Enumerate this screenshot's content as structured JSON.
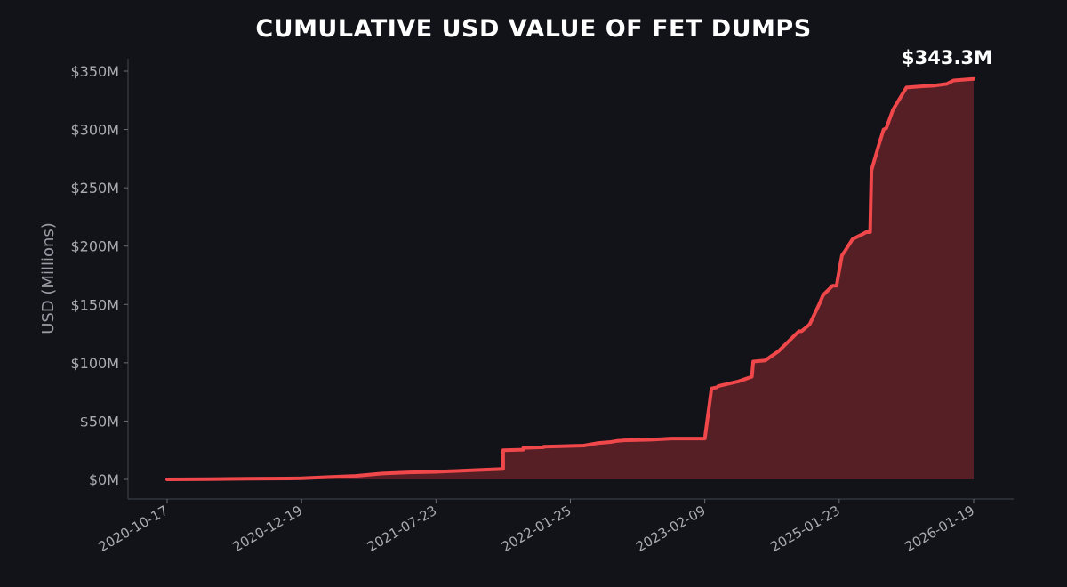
{
  "chart_data": {
    "type": "area",
    "title": "CUMULATIVE USD VALUE OF FET DUMPS",
    "xlabel": "",
    "ylabel": "USD (Millions)",
    "ylim": [
      0,
      350
    ],
    "yticks": [
      0,
      50,
      100,
      150,
      200,
      250,
      300,
      350
    ],
    "ytick_labels": [
      "$0M",
      "$50M",
      "$100M",
      "$150M",
      "$200M",
      "$250M",
      "$300M",
      "$350M"
    ],
    "xtick_labels": [
      "2020-10-17",
      "2020-12-19",
      "2021-07-23",
      "2022-01-25",
      "2023-02-09",
      "2025-01-23",
      "2026-01-19"
    ],
    "x_axis_note": "categorical-ordinal; x values are tick-interval positions (0 = 2020-10-17 ... 6 = 2026-01-19)",
    "annotation": "$343.3M",
    "grid": false,
    "colors": {
      "line": "#f0474a",
      "fill": "#5a2026",
      "background": "#121318"
    },
    "series": [
      {
        "x": [
          0,
          0.3,
          0.6,
          0.9,
          1.0,
          1.2,
          1.4,
          1.6,
          1.7,
          1.8,
          2.0,
          2.3,
          2.5,
          2.5,
          2.5,
          2.65,
          2.65,
          2.8,
          2.8,
          3.1,
          3.2,
          3.3,
          3.35,
          3.4,
          3.6,
          3.75,
          3.85,
          4.0,
          4.05,
          4.09,
          4.1,
          4.25,
          4.3,
          4.35,
          4.36,
          4.45,
          4.55,
          4.7,
          4.72,
          4.78,
          4.85,
          4.88,
          4.95,
          4.98,
          5.02,
          5.05,
          5.1,
          5.17,
          5.2,
          5.23,
          5.24,
          5.29,
          5.33,
          5.35,
          5.4,
          5.5,
          5.62,
          5.7,
          5.8,
          5.85,
          6.0
        ],
        "y": [
          0,
          0.2,
          0.5,
          0.8,
          1,
          2,
          3,
          5,
          5.5,
          6,
          6.5,
          8,
          9,
          14,
          25,
          25.5,
          27,
          27.5,
          28,
          29,
          31,
          32,
          33,
          33.5,
          34,
          35,
          35,
          35,
          78,
          79,
          80,
          84,
          86,
          88,
          101,
          102,
          110,
          127,
          127,
          133,
          150,
          158,
          166,
          166,
          192,
          197,
          206,
          210,
          212,
          212,
          265,
          285,
          300,
          301,
          317,
          336,
          337,
          337.5,
          339,
          342,
          343.3
        ]
      }
    ]
  }
}
